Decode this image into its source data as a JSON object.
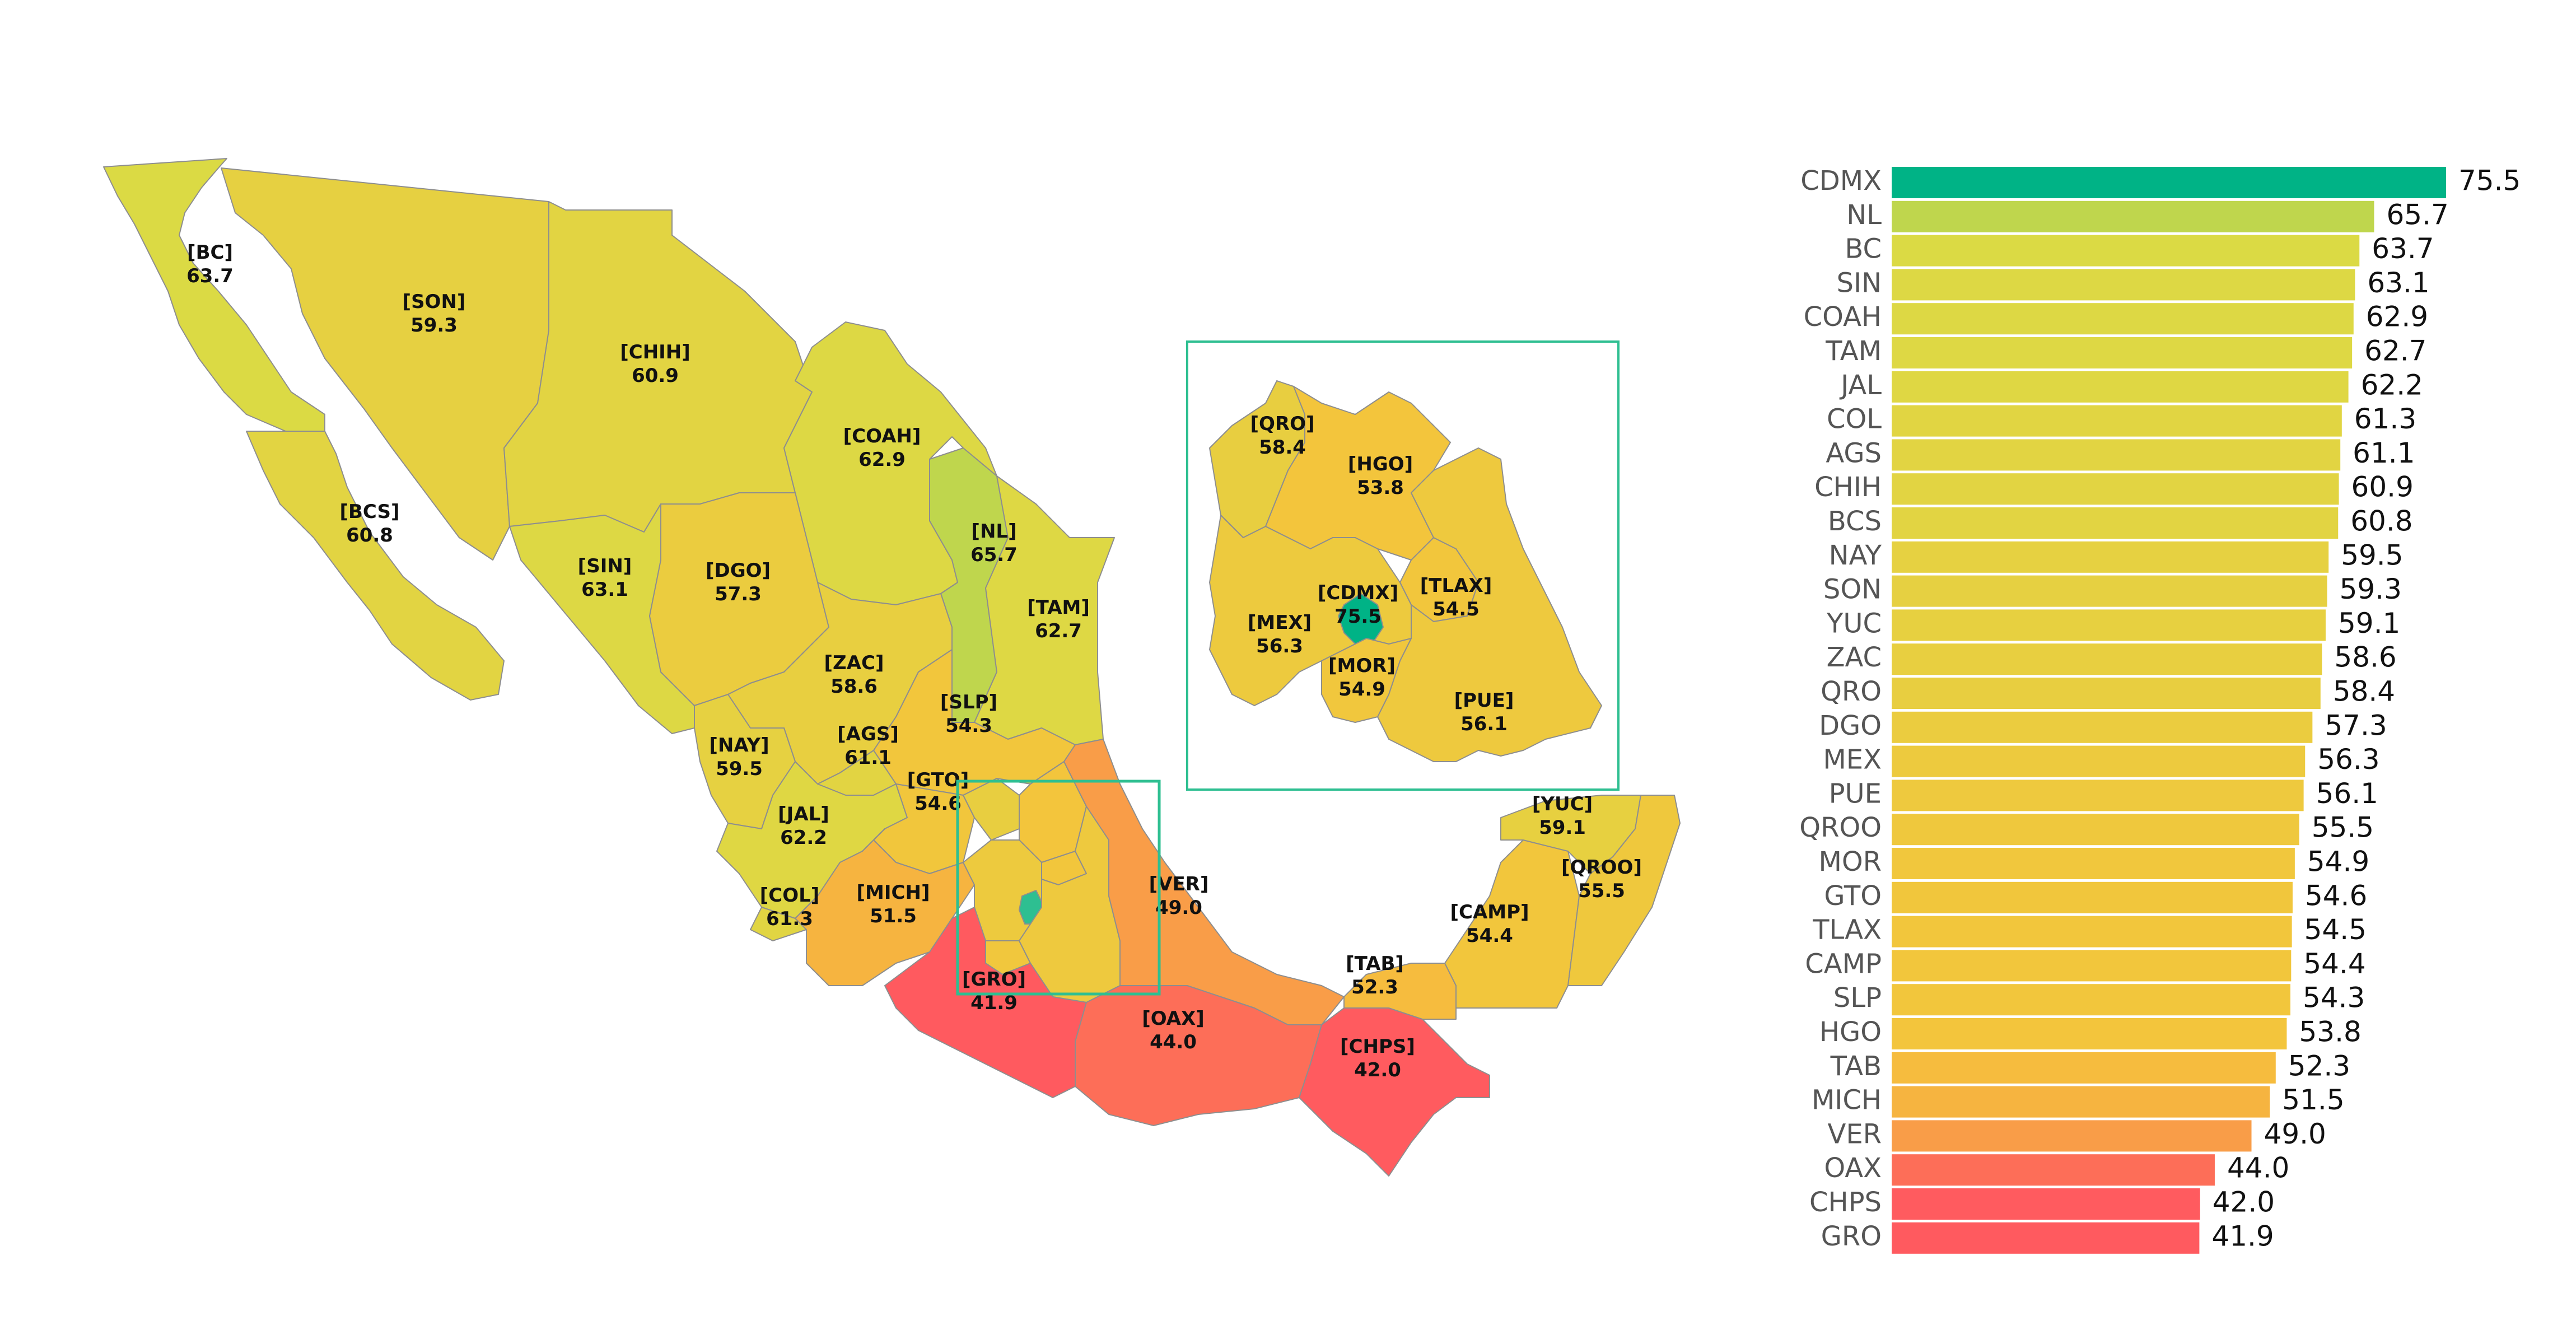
{
  "chart_data": {
    "type": "bar",
    "orientation": "horizontal",
    "sort": "descending",
    "color_scale": [
      "#ff5a5f",
      "#f5c33b",
      "#dadb45",
      "#00b386"
    ],
    "categories": [
      "CDMX",
      "NL",
      "BC",
      "SIN",
      "COAH",
      "TAM",
      "JAL",
      "COL",
      "AGS",
      "CHIH",
      "BCS",
      "NAY",
      "SON",
      "YUC",
      "ZAC",
      "QRO",
      "DGO",
      "MEX",
      "PUE",
      "QROO",
      "MOR",
      "GTO",
      "TLAX",
      "CAMP",
      "SLP",
      "HGO",
      "TAB",
      "MICH",
      "VER",
      "OAX",
      "CHPS",
      "GRO"
    ],
    "values": [
      75.5,
      65.7,
      63.7,
      63.1,
      62.9,
      62.7,
      62.2,
      61.3,
      61.1,
      60.9,
      60.8,
      59.5,
      59.3,
      59.1,
      58.6,
      58.4,
      57.3,
      56.3,
      56.1,
      55.5,
      54.9,
      54.6,
      54.5,
      54.4,
      54.3,
      53.8,
      52.3,
      51.5,
      49.0,
      44.0,
      42.0,
      41.9
    ],
    "value_labels": [
      "75.5",
      "65.7",
      "63.7",
      "63.1",
      "62.9",
      "62.7",
      "62.2",
      "61.3",
      "61.1",
      "60.9",
      "60.8",
      "59.5",
      "59.3",
      "59.1",
      "58.6",
      "58.4",
      "57.3",
      "56.3",
      "56.1",
      "55.5",
      "54.9",
      "54.6",
      "54.5",
      "54.4",
      "54.3",
      "53.8",
      "52.3",
      "51.5",
      "49.0",
      "44.0",
      "42.0",
      "41.9"
    ],
    "xlim": [
      0,
      75.5
    ]
  },
  "map": {
    "inset_highlight_color": "#2ebf91",
    "labels": {
      "BC": {
        "code": "[BC]",
        "value": "63.7"
      },
      "SON": {
        "code": "[SON]",
        "value": "59.3"
      },
      "CHIH": {
        "code": "[CHIH]",
        "value": "60.9"
      },
      "COAH": {
        "code": "[COAH]",
        "value": "62.9"
      },
      "BCS": {
        "code": "[BCS]",
        "value": "60.8"
      },
      "NL": {
        "code": "[NL]",
        "value": "65.7"
      },
      "SIN": {
        "code": "[SIN]",
        "value": "63.1"
      },
      "DGO": {
        "code": "[DGO]",
        "value": "57.3"
      },
      "TAM": {
        "code": "[TAM]",
        "value": "62.7"
      },
      "ZAC": {
        "code": "[ZAC]",
        "value": "58.6"
      },
      "SLP": {
        "code": "[SLP]",
        "value": "54.3"
      },
      "AGS": {
        "code": "[AGS]",
        "value": "61.1"
      },
      "NAY": {
        "code": "[NAY]",
        "value": "59.5"
      },
      "GTO": {
        "code": "[GTO]",
        "value": "54.6"
      },
      "JAL": {
        "code": "[JAL]",
        "value": "62.2"
      },
      "VER": {
        "code": "[VER]",
        "value": "49.0"
      },
      "COL": {
        "code": "[COL]",
        "value": "61.3"
      },
      "MICH": {
        "code": "[MICH]",
        "value": "51.5"
      },
      "GRO": {
        "code": "[GRO]",
        "value": "41.9"
      },
      "OAX": {
        "code": "[OAX]",
        "value": "44.0"
      },
      "CHPS": {
        "code": "[CHPS]",
        "value": "42.0"
      },
      "TAB": {
        "code": "[TAB]",
        "value": "52.3"
      },
      "CAMP": {
        "code": "[CAMP]",
        "value": "54.4"
      },
      "YUC": {
        "code": "[YUC]",
        "value": "59.1"
      },
      "QROO": {
        "code": "[QROO]",
        "value": "55.5"
      }
    },
    "inset_labels": {
      "QRO": {
        "code": "[QRO]",
        "value": "58.4"
      },
      "HGO": {
        "code": "[HGO]",
        "value": "53.8"
      },
      "CDMX": {
        "code": "[CDMX]",
        "value": "75.5"
      },
      "TLAX": {
        "code": "[TLAX]",
        "value": "54.5"
      },
      "MEX": {
        "code": "[MEX]",
        "value": "56.3"
      },
      "MOR": {
        "code": "[MOR]",
        "value": "54.9"
      },
      "PUE": {
        "code": "[PUE]",
        "value": "56.1"
      }
    }
  }
}
